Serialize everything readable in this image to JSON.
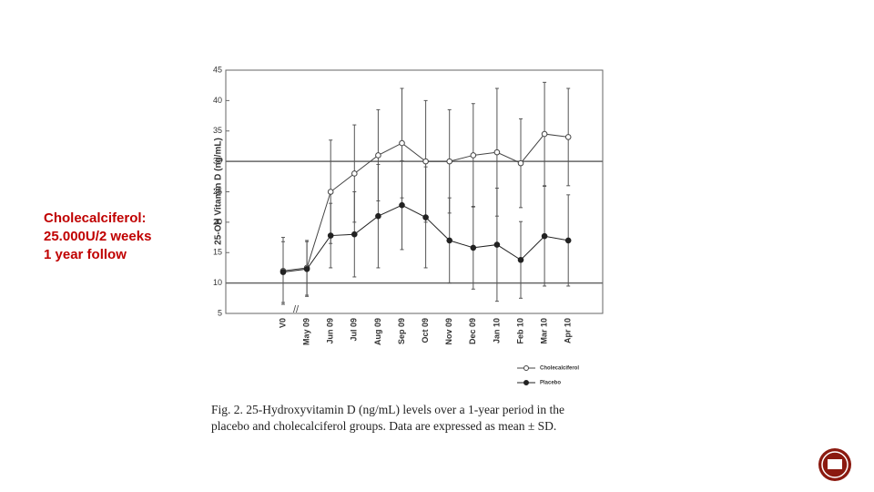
{
  "slide_text": [
    "Cholecalciferol:",
    "25.000U/2 weeks",
    "1 year follow"
  ],
  "chart_data": {
    "type": "line",
    "y_label": "25-OH Vitamin D (ng/mL)",
    "categories": [
      "V0",
      "May 09",
      "Jun 09",
      "Jul 09",
      "Aug 09",
      "Sep 09",
      "Oct 09",
      "Nov 09",
      "Dec 09",
      "Jan 10",
      "Feb 10",
      "Mar 10",
      "Apr 10"
    ],
    "series": [
      {
        "name": "Cholecalciferol",
        "color": "#444444",
        "marker": "open-circle",
        "values": [
          12,
          12.5,
          25,
          28,
          31,
          33,
          30,
          30,
          31,
          31.5,
          29.7,
          34.5,
          34
        ],
        "errors": [
          5.5,
          4.5,
          8.5,
          8,
          7.5,
          9,
          10,
          8.5,
          8.5,
          10.5,
          7.3,
          8.5,
          8
        ]
      },
      {
        "name": "Placebo",
        "color": "#222222",
        "marker": "filled-circle",
        "values": [
          11.8,
          12.3,
          17.8,
          18,
          21,
          22.8,
          20.8,
          17,
          15.8,
          16.3,
          13.8,
          17.7,
          17
        ],
        "errors": [
          5,
          4.5,
          5.3,
          7,
          8.5,
          7.3,
          8.3,
          7,
          6.8,
          9.3,
          6.3,
          8.2,
          7.5
        ]
      }
    ],
    "ylim": [
      5,
      45
    ],
    "yticks": [
      5,
      10,
      15,
      20,
      25,
      30,
      35,
      40,
      45
    ],
    "reference_lines": [
      10,
      30
    ],
    "caption": [
      "Fig. 2. 25-Hydroxyvitamin D (ng/mL) levels over a 1-year period in the",
      "placebo and cholecalciferol groups. Data are expressed as mean ± SD."
    ]
  }
}
